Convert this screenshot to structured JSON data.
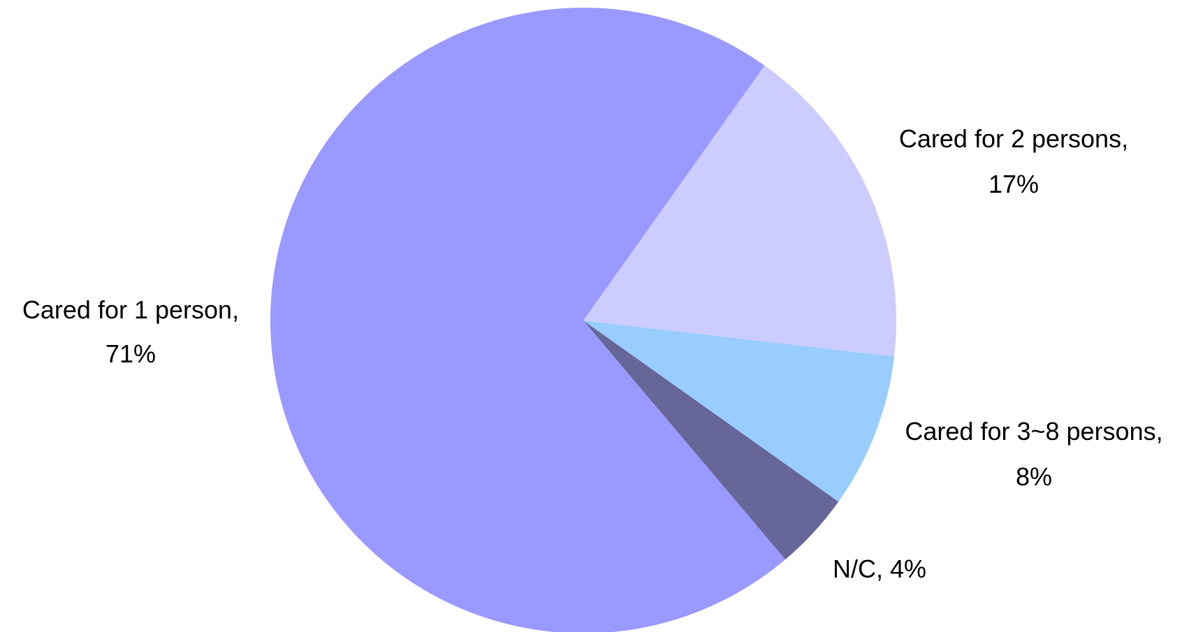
{
  "chart_data": {
    "type": "pie",
    "categories": [
      "Cared for 2 persons,",
      "Cared for 3~8 persons,",
      "N/C,",
      "Cared for 1 person,"
    ],
    "values": [
      17,
      8,
      4,
      71
    ],
    "value_labels": [
      "17%",
      "8%",
      "4%",
      "71%"
    ],
    "colors": [
      "#ccccff",
      "#99ccff",
      "#666699",
      "#9999ff"
    ]
  }
}
